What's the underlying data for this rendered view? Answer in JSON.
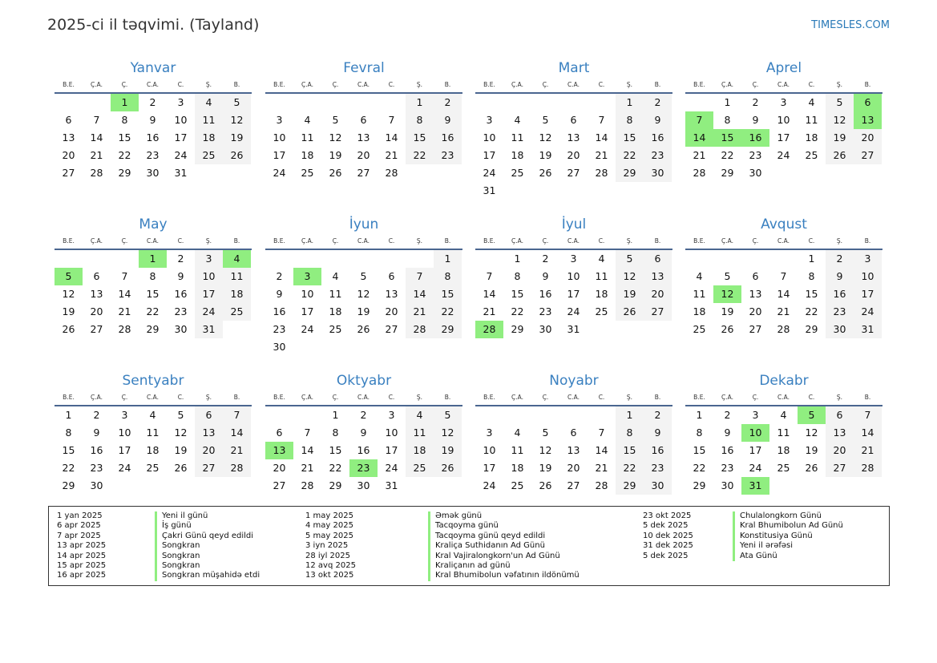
{
  "header": {
    "title": "2025-ci il təqvimi. (Tayland)",
    "site": "TIMESLES.COM"
  },
  "year": 2025,
  "weekdays": [
    "B.E.",
    "Ç.A.",
    "Ç.",
    "C.A.",
    "C.",
    "Ş.",
    "B."
  ],
  "months": [
    "Yanvar",
    "Fevral",
    "Mart",
    "Aprel",
    "May",
    "İyun",
    "İyul",
    "Avqust",
    "Sentyabr",
    "Oktyabr",
    "Noyabr",
    "Dekabr"
  ],
  "colors": {
    "holiday": "#90ee80",
    "weekend": "#f3f3f3",
    "accent": "#3a80c0"
  },
  "holiday_days": {
    "1": [
      1
    ],
    "4": [
      6,
      7,
      13,
      14,
      15,
      16
    ],
    "5": [
      1,
      4,
      5
    ],
    "6": [
      3
    ],
    "7": [
      28
    ],
    "8": [
      12
    ],
    "10": [
      13,
      23
    ],
    "12": [
      5,
      10,
      31
    ]
  },
  "holidays": [
    {
      "date": "1 yan 2025",
      "name": "Yeni il günü"
    },
    {
      "date": "6 apr 2025",
      "name": "İş günü"
    },
    {
      "date": "7 apr 2025",
      "name": "Çakri Günü qeyd edildi"
    },
    {
      "date": "13 apr 2025",
      "name": "Songkran"
    },
    {
      "date": "14 apr 2025",
      "name": "Songkran"
    },
    {
      "date": "15 apr 2025",
      "name": "Songkran"
    },
    {
      "date": "16 apr 2025",
      "name": "Songkran müşahidə etdi"
    },
    {
      "date": "1 may 2025",
      "name": "Əmək günü"
    },
    {
      "date": "4 may 2025",
      "name": "Tacqoyma günü"
    },
    {
      "date": "5 may 2025",
      "name": "Tacqoyma günü qeyd edildi"
    },
    {
      "date": "3 iyn 2025",
      "name": "Kraliça Suthidanın Ad Günü"
    },
    {
      "date": "28 iyl 2025",
      "name": "Kral Vajiralongkorn'un Ad Günü"
    },
    {
      "date": "12 avq 2025",
      "name": "Kraliçanın ad günü"
    },
    {
      "date": "13 okt 2025",
      "name": "Kral Bhumibolun vəfatının ildönümü"
    },
    {
      "date": "23 okt 2025",
      "name": "Chulalongkorn Günü"
    },
    {
      "date": "5 dek 2025",
      "name": "Kral Bhumibolun Ad Günü"
    },
    {
      "date": "10 dek 2025",
      "name": "Konstitusiya Günü"
    },
    {
      "date": "31 dek 2025",
      "name": "Yeni il ərəfəsi"
    },
    {
      "date": "5 dek 2025",
      "name": "Ata Günü"
    }
  ]
}
